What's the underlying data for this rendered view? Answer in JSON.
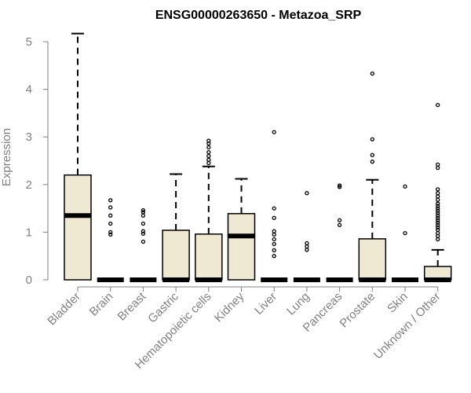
{
  "chart_data": {
    "type": "boxplot",
    "title": "ENSG00000263650 - Metazoa_SRP",
    "xlabel": "",
    "ylabel": "Expression",
    "ylim": [
      0,
      5.2
    ],
    "yticks": [
      0,
      1,
      2,
      3,
      4,
      5
    ],
    "box_fill": "#EFE8D2",
    "categories": [
      "Bladder",
      "Brain",
      "Breast",
      "Gastric",
      "Hematopoietic cells",
      "Kidney",
      "Liver",
      "Lung",
      "Pancreas",
      "Prostate",
      "Skin",
      "Unknown / Other"
    ],
    "boxes": [
      {
        "q1": 0,
        "median": 1.35,
        "q3": 2.2,
        "whisker_low": 0,
        "whisker_high": 5.17,
        "outliers": []
      },
      {
        "q1": 0,
        "median": 0,
        "q3": 0,
        "whisker_low": 0,
        "whisker_high": 0,
        "outliers": [
          0.95,
          1.0,
          1.18,
          1.35,
          1.52,
          1.67
        ]
      },
      {
        "q1": 0,
        "median": 0,
        "q3": 0,
        "whisker_low": 0,
        "whisker_high": 0,
        "outliers": [
          0.8,
          0.97,
          1.02,
          1.18,
          1.35,
          1.42,
          1.46
        ]
      },
      {
        "q1": 0,
        "median": 0,
        "q3": 1.04,
        "whisker_low": 0,
        "whisker_high": 2.22,
        "outliers": []
      },
      {
        "q1": 0,
        "median": 0,
        "q3": 0.96,
        "whisker_low": 0,
        "whisker_high": 2.38,
        "outliers": [
          2.45,
          2.52,
          2.6,
          2.68,
          2.78,
          2.86,
          2.92
        ]
      },
      {
        "q1": 0,
        "median": 0.92,
        "q3": 1.39,
        "whisker_low": 0,
        "whisker_high": 2.12,
        "outliers": []
      },
      {
        "q1": 0,
        "median": 0,
        "q3": 0,
        "whisker_low": 0,
        "whisker_high": 0,
        "outliers": [
          0.5,
          0.62,
          0.75,
          0.85,
          0.95,
          1.02,
          1.3,
          1.5,
          3.1
        ]
      },
      {
        "q1": 0,
        "median": 0,
        "q3": 0,
        "whisker_low": 0,
        "whisker_high": 0,
        "outliers": [
          0.63,
          0.7,
          0.77,
          1.82
        ]
      },
      {
        "q1": 0,
        "median": 0,
        "q3": 0,
        "whisker_low": 0,
        "whisker_high": 0,
        "outliers": [
          1.15,
          1.25,
          1.95,
          1.98
        ]
      },
      {
        "q1": 0,
        "median": 0,
        "q3": 0.86,
        "whisker_low": 0,
        "whisker_high": 2.1,
        "outliers": [
          2.48,
          2.62,
          2.95,
          4.33
        ]
      },
      {
        "q1": 0,
        "median": 0,
        "q3": 0,
        "whisker_low": 0,
        "whisker_high": 0,
        "outliers": [
          0.98,
          1.96
        ]
      },
      {
        "q1": 0,
        "median": 0,
        "q3": 0.28,
        "whisker_low": 0,
        "whisker_high": 0.63,
        "outliers": [
          0.85,
          0.92,
          0.98,
          1.05,
          1.1,
          1.15,
          1.2,
          1.25,
          1.3,
          1.35,
          1.4,
          1.45,
          1.5,
          1.55,
          1.6,
          1.68,
          1.75,
          1.82,
          1.9,
          2.35,
          2.42,
          3.67
        ]
      }
    ]
  }
}
